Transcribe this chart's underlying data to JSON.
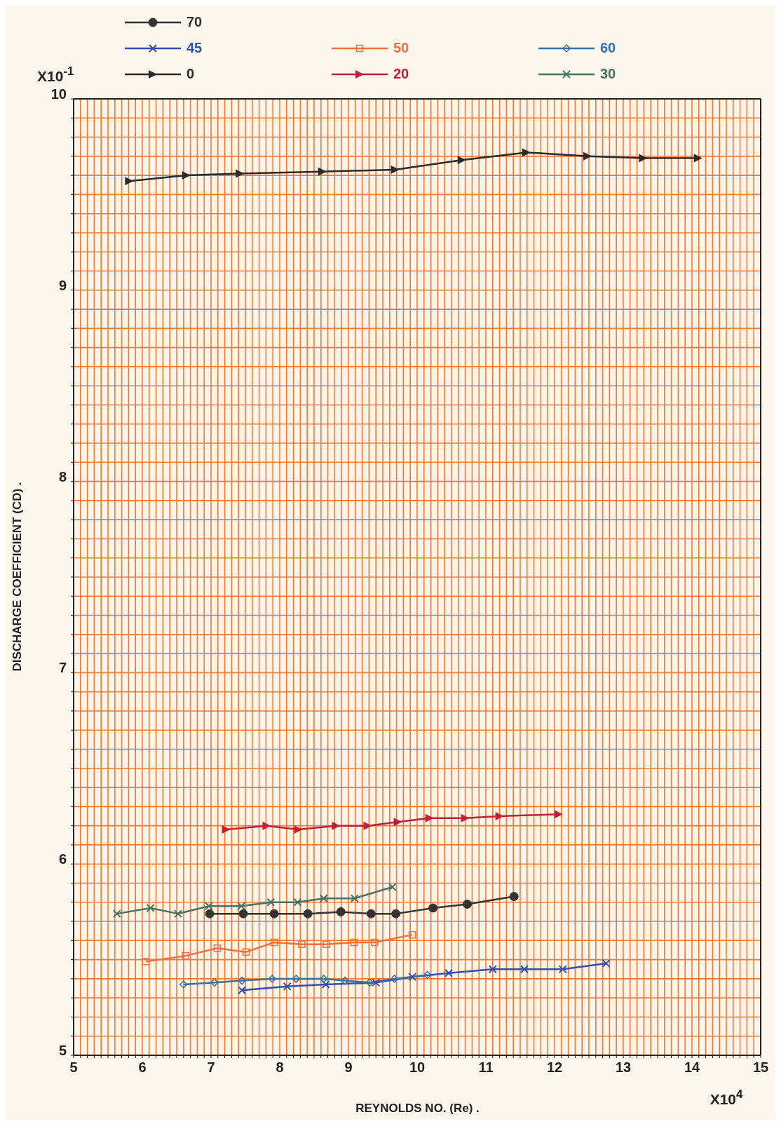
{
  "chart_data": {
    "type": "line",
    "xlabel": "REYNOLDS NO. (Re) .",
    "ylabel": "DISCHARGE COEFFICIENT (CD) .",
    "annotations": [
      "X10$^{-1}$",
      "X10$^{4}$"
    ],
    "xlim": [
      5,
      15
    ],
    "ylim": [
      5,
      10
    ],
    "xticks": [
      5,
      {
        "value": 5.1,
        "label": null
      },
      {
        "value": 5.2,
        "label": null
      },
      {
        "value": 5.3,
        "label": null
      },
      {
        "value": 5.4,
        "label": null
      },
      {
        "value": 5.5,
        "label": null
      },
      {
        "value": 5.6,
        "label": null
      },
      {
        "value": 5.7,
        "label": null
      },
      {
        "value": 5.8,
        "label": null
      },
      {
        "value": 5.9,
        "label": null
      },
      6,
      {
        "value": 6.1,
        "label": null
      },
      {
        "value": 6.2,
        "label": null
      },
      {
        "value": 6.3,
        "label": null
      },
      {
        "value": 6.4,
        "label": null
      },
      {
        "value": 6.5,
        "label": null
      },
      {
        "value": 6.6,
        "label": null
      },
      {
        "value": 6.7,
        "label": null
      },
      {
        "value": 6.8,
        "label": null
      },
      {
        "value": 6.9,
        "label": null
      },
      7,
      {
        "value": 7.1,
        "label": null
      },
      {
        "value": 7.2,
        "label": null
      },
      {
        "value": 7.3,
        "label": null
      },
      {
        "value": 7.4,
        "label": null
      },
      {
        "value": 7.5,
        "label": null
      },
      {
        "value": 7.6,
        "label": null
      },
      {
        "value": 7.7,
        "label": null
      },
      {
        "value": 7.8,
        "label": null
      },
      {
        "value": 7.9,
        "label": null
      },
      8,
      {
        "value": 8.1,
        "label": null
      },
      {
        "value": 8.2,
        "label": null
      },
      {
        "value": 8.3,
        "label": null
      },
      {
        "value": 8.4,
        "label": null
      },
      {
        "value": 8.5,
        "label": null
      },
      {
        "value": 8.6,
        "label": null
      },
      {
        "value": 8.7,
        "label": null
      },
      {
        "value": 8.8,
        "label": null
      },
      {
        "value": 8.9,
        "label": null
      },
      9,
      {
        "value": 9.1,
        "label": null
      },
      {
        "value": 9.2,
        "label": null
      },
      {
        "value": 9.3,
        "label": null
      },
      {
        "value": 9.4,
        "label": null
      },
      {
        "value": 9.5,
        "label": null
      },
      {
        "value": 9.6,
        "label": null
      },
      {
        "value": 9.7,
        "label": null
      },
      {
        "value": 9.8,
        "label": null
      },
      {
        "value": 9.9,
        "label": null
      },
      10,
      {
        "value": 10.1,
        "label": null
      },
      {
        "value": 10.2,
        "label": null
      },
      {
        "value": 10.3,
        "label": null
      },
      {
        "value": 10.4,
        "label": null
      },
      {
        "value": 10.5,
        "label": null
      },
      {
        "value": 10.6,
        "label": null
      },
      {
        "value": 10.7,
        "label": null
      },
      {
        "value": 10.8,
        "label": null
      },
      {
        "value": 10.9,
        "label": null
      },
      11,
      {
        "value": 11.1,
        "label": null
      },
      {
        "value": 11.2,
        "label": null
      },
      {
        "value": 11.3,
        "label": null
      },
      {
        "value": 11.4,
        "label": null
      },
      {
        "value": 11.5,
        "label": null
      },
      {
        "value": 11.6,
        "label": null
      },
      {
        "value": 11.7,
        "label": null
      },
      {
        "value": 11.8,
        "label": null
      },
      {
        "value": 11.9,
        "label": null
      },
      12,
      {
        "value": 12.1,
        "label": null
      },
      {
        "value": 12.2,
        "label": null
      },
      {
        "value": 12.3,
        "label": null
      },
      {
        "value": 12.4,
        "label": null
      },
      {
        "value": 12.5,
        "label": null
      },
      {
        "value": 12.6,
        "label": null
      },
      {
        "value": 12.7,
        "label": null
      },
      {
        "value": 12.8,
        "label": null
      },
      {
        "value": 12.9,
        "label": null
      },
      13,
      {
        "value": 13.1,
        "label": null
      },
      {
        "value": 13.2,
        "label": null
      },
      {
        "value": 13.3,
        "label": null
      },
      {
        "value": 13.4,
        "label": null
      },
      {
        "value": 13.5,
        "label": null
      },
      {
        "value": 13.6,
        "label": null
      },
      {
        "value": 13.7,
        "label": null
      },
      {
        "value": 13.8,
        "label": null
      },
      {
        "value": 13.9,
        "label": null
      },
      14,
      {
        "value": 14.1,
        "label": null
      },
      {
        "value": 14.2,
        "label": null
      },
      {
        "value": 14.3,
        "label": null
      },
      {
        "value": 14.4,
        "label": null
      },
      {
        "value": 14.5,
        "label": null
      },
      {
        "value": 14.6,
        "label": null
      },
      {
        "value": 14.7,
        "label": null
      },
      {
        "value": 14.8,
        "label": null
      },
      {
        "value": 14.9,
        "label": null
      },
      15
    ],
    "yticks": [
      5,
      {
        "value": 5.1,
        "label": null
      },
      {
        "value": 5.2,
        "label": null
      },
      {
        "value": 5.3,
        "label": null
      },
      {
        "value": 5.4,
        "label": null
      },
      {
        "value": 5.5,
        "label": null
      },
      {
        "value": 5.6,
        "label": null
      },
      {
        "value": 5.7,
        "label": null
      },
      {
        "value": 5.8,
        "label": null
      },
      {
        "value": 5.9,
        "label": null
      },
      6,
      {
        "value": 6.1,
        "label": null
      },
      {
        "value": 6.2,
        "label": null
      },
      {
        "value": 6.3,
        "label": null
      },
      {
        "value": 6.4,
        "label": null
      },
      {
        "value": 6.5,
        "label": null
      },
      {
        "value": 6.6,
        "label": null
      },
      {
        "value": 6.7,
        "label": null
      },
      {
        "value": 6.8,
        "label": null
      },
      {
        "value": 6.9,
        "label": null
      },
      7,
      {
        "value": 7.1,
        "label": null
      },
      {
        "value": 7.2,
        "label": null
      },
      {
        "value": 7.3,
        "label": null
      },
      {
        "value": 7.4,
        "label": null
      },
      {
        "value": 7.5,
        "label": null
      },
      {
        "value": 7.6,
        "label": null
      },
      {
        "value": 7.7,
        "label": null
      },
      {
        "value": 7.8,
        "label": null
      },
      {
        "value": 7.9,
        "label": null
      },
      8,
      {
        "value": 8.1,
        "label": null
      },
      {
        "value": 8.2,
        "label": null
      },
      {
        "value": 8.3,
        "label": null
      },
      {
        "value": 8.4,
        "label": null
      },
      {
        "value": 8.5,
        "label": null
      },
      {
        "value": 8.6,
        "label": null
      },
      {
        "value": 8.7,
        "label": null
      },
      {
        "value": 8.8,
        "label": null
      },
      {
        "value": 8.9,
        "label": null
      },
      9,
      {
        "value": 9.1,
        "label": null
      },
      {
        "value": 9.2,
        "label": null
      },
      {
        "value": 9.3,
        "label": null
      },
      {
        "value": 9.4,
        "label": null
      },
      {
        "value": 9.5,
        "label": null
      },
      {
        "value": 9.6,
        "label": null
      },
      {
        "value": 9.7,
        "label": null
      },
      {
        "value": 9.8,
        "label": null
      },
      {
        "value": 9.9,
        "label": null
      },
      10
    ],
    "grid": true,
    "legend": "top",
    "line_style": "solid",
    "series": [
      {
        "name": "70",
        "color": "#333333",
        "marker": "circle",
        "x": [
          6.98,
          7.47,
          7.92,
          8.41,
          8.89,
          9.33,
          9.69,
          10.23,
          10.73,
          11.41
        ],
        "values": [
          5.74,
          5.74,
          5.74,
          5.74,
          5.75,
          5.74,
          5.74,
          5.77,
          5.79,
          5.83
        ]
      },
      {
        "name": "45",
        "color": "#3050b0",
        "marker": "cross",
        "x": [
          7.45,
          8.11,
          8.67,
          9.4,
          9.93,
          10.46,
          11.1,
          11.56,
          12.12,
          12.75
        ],
        "values": [
          5.34,
          5.36,
          5.37,
          5.38,
          5.41,
          5.43,
          5.45,
          5.45,
          5.45,
          5.48
        ]
      },
      {
        "name": "0",
        "color": "#2a2a2a",
        "marker": "triangle",
        "x": [
          5.81,
          6.64,
          7.42,
          8.62,
          9.68,
          10.65,
          11.59,
          12.48,
          13.29,
          14.09
        ],
        "values": [
          9.57,
          9.6,
          9.61,
          9.62,
          9.63,
          9.68,
          9.72,
          9.7,
          9.69,
          9.69
        ]
      },
      {
        "name": "50",
        "color": "#f07040",
        "marker": "square",
        "x": [
          6.05,
          6.63,
          7.09,
          7.51,
          7.92,
          8.32,
          8.68,
          9.08,
          9.38,
          9.93
        ],
        "values": [
          5.49,
          5.52,
          5.56,
          5.54,
          5.59,
          5.58,
          5.58,
          5.59,
          5.59,
          5.63
        ]
      },
      {
        "name": "20",
        "color": "#c0203a",
        "marker": "triangle",
        "x": [
          7.22,
          7.81,
          8.27,
          8.82,
          9.28,
          9.72,
          10.18,
          10.7,
          11.2,
          12.06
        ],
        "values": [
          6.18,
          6.2,
          6.18,
          6.2,
          6.2,
          6.22,
          6.24,
          6.24,
          6.25,
          6.26
        ]
      },
      {
        "name": "60",
        "color": "#3a70a0",
        "marker": "diamond",
        "x": [
          6.6,
          7.05,
          7.45,
          7.89,
          8.24,
          8.64,
          8.95,
          9.31,
          9.67,
          10.15
        ],
        "values": [
          5.37,
          5.38,
          5.39,
          5.4,
          5.4,
          5.4,
          5.39,
          5.38,
          5.4,
          5.42
        ]
      },
      {
        "name": "30",
        "color": "#4a7060",
        "marker": "cross",
        "x": [
          5.63,
          6.12,
          6.52,
          6.97,
          7.44,
          7.87,
          8.26,
          8.64,
          9.09,
          9.64
        ],
        "values": [
          5.74,
          5.77,
          5.74,
          5.78,
          5.78,
          5.8,
          5.8,
          5.82,
          5.82,
          5.88
        ]
      }
    ]
  }
}
